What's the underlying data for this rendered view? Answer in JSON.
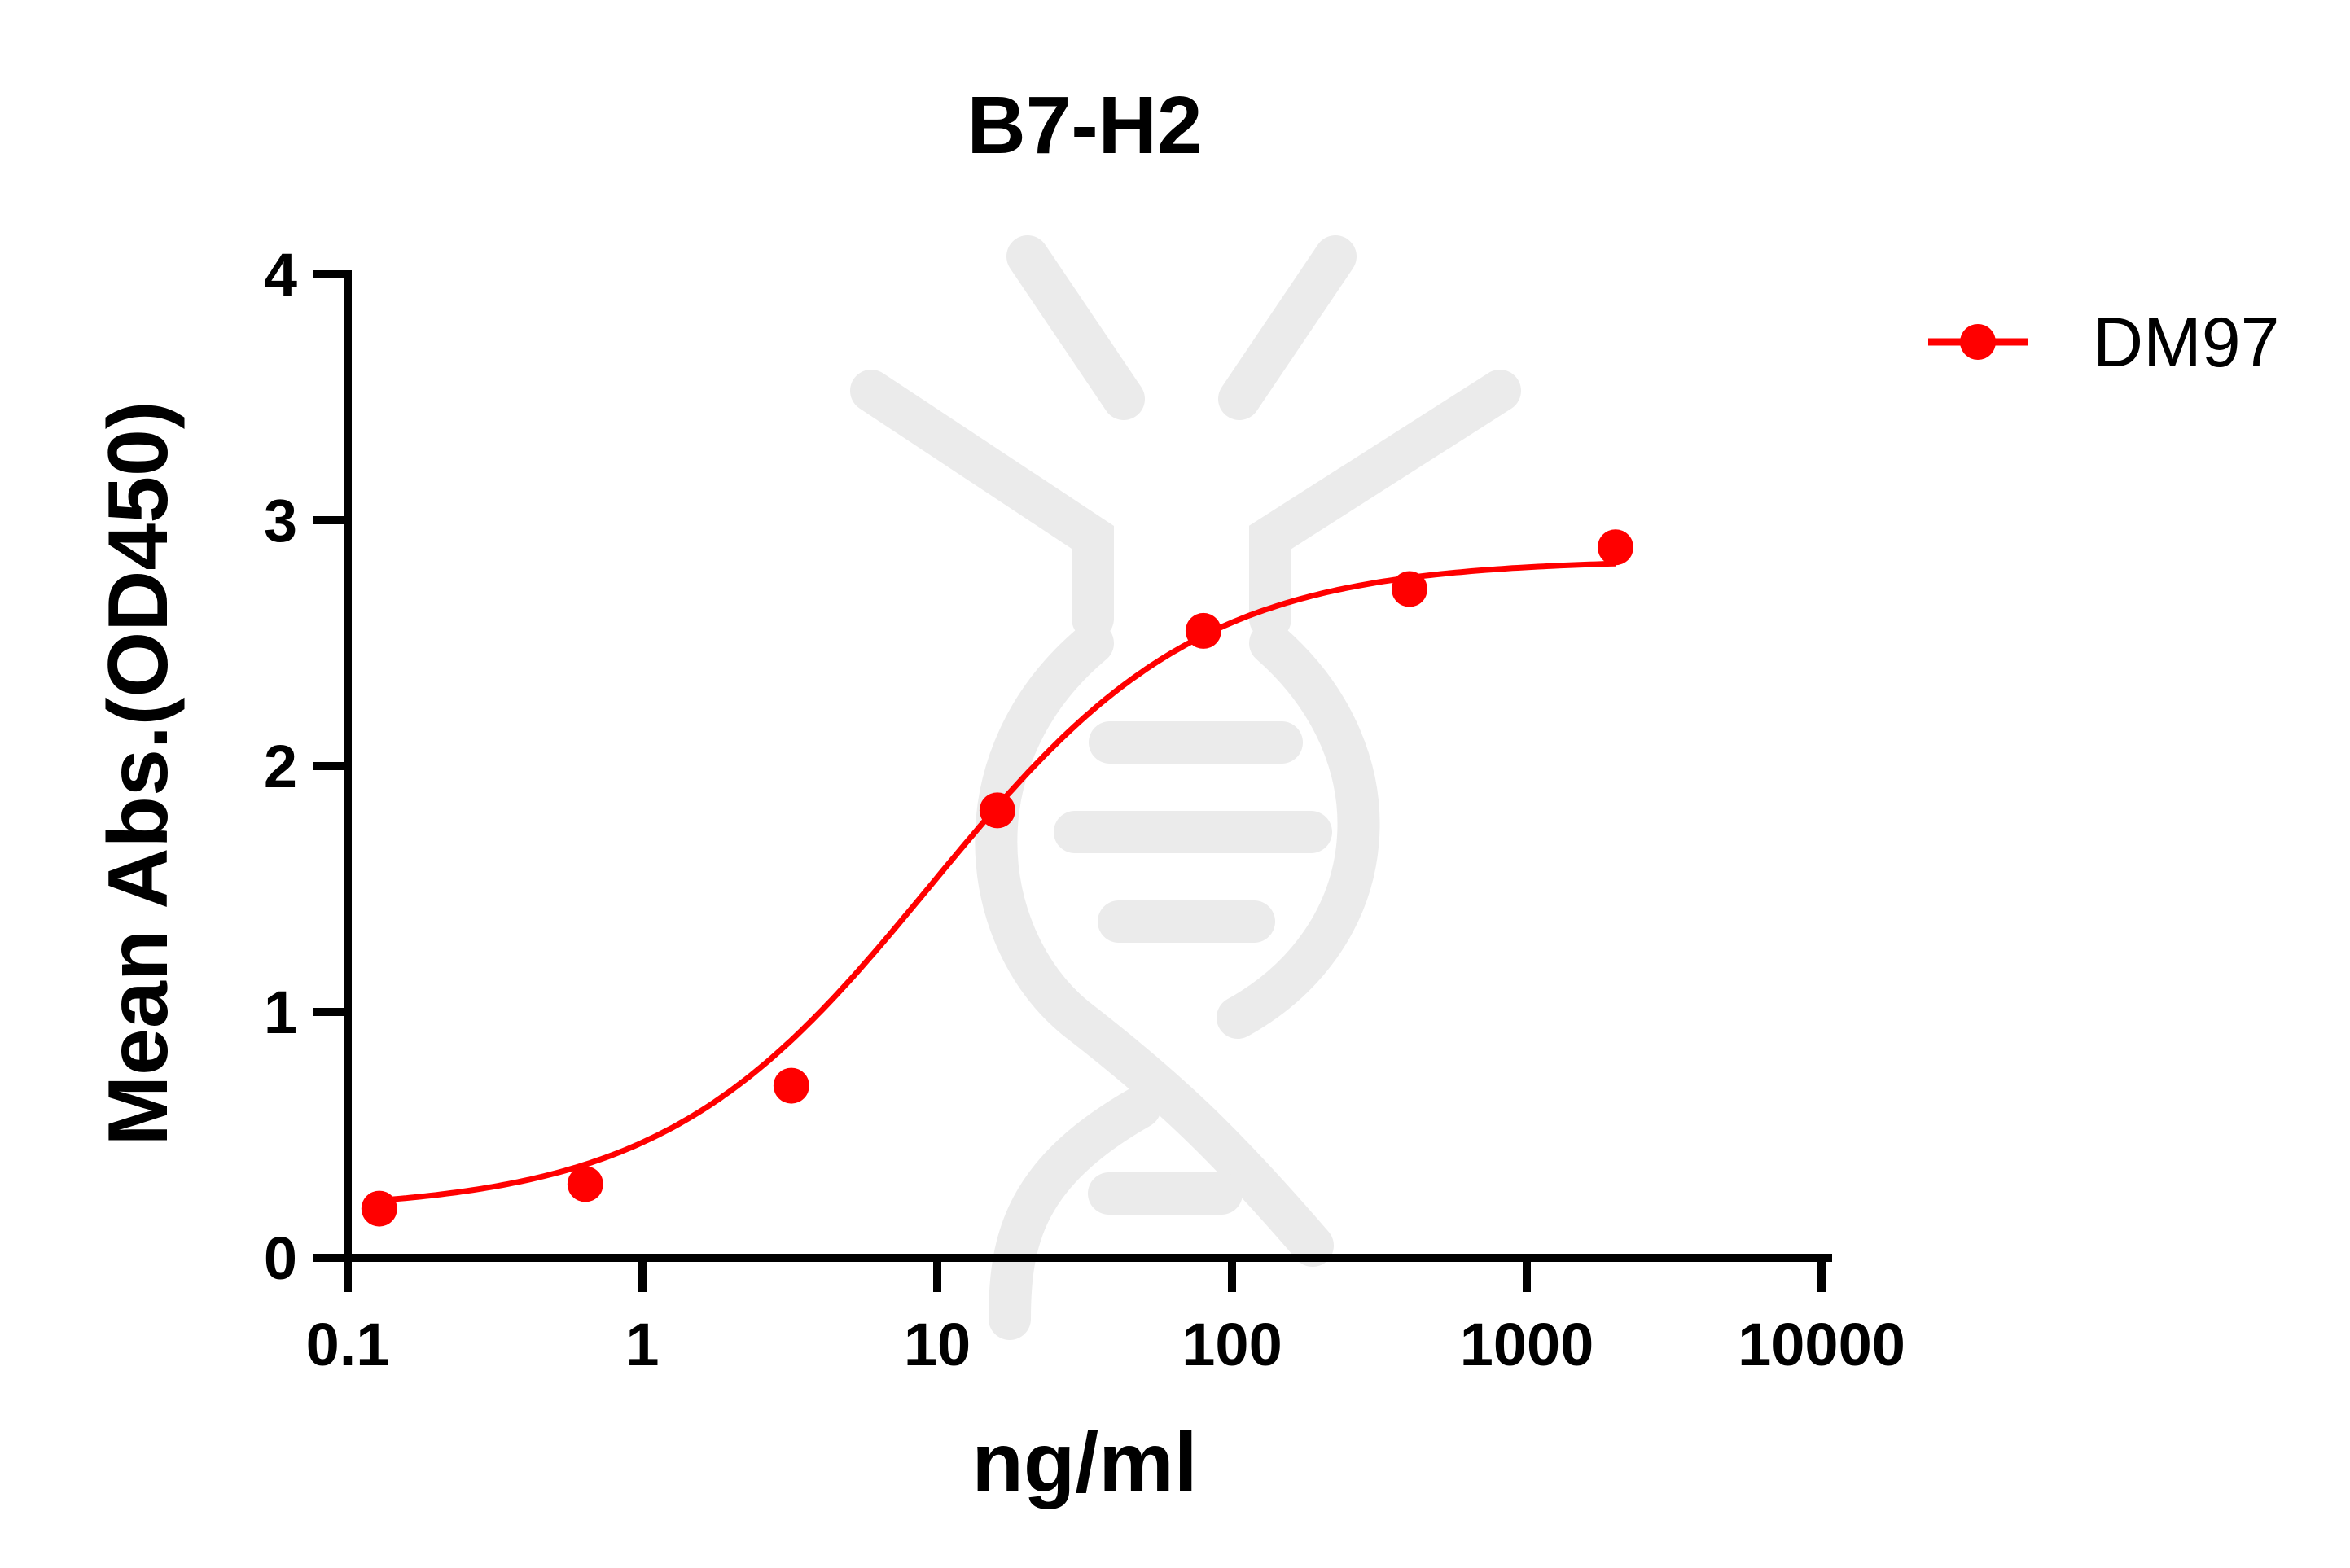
{
  "colors": {
    "series": "#ff0000",
    "axis": "#000000",
    "background": "#ffffff",
    "watermark": "#ebebeb"
  },
  "chart_data": {
    "type": "line",
    "title": "B7-H2",
    "xlabel": "ng/ml",
    "ylabel": "Mean Abs.(OD450)",
    "x_scale": "log",
    "xlim": [
      0.1,
      10000
    ],
    "ylim": [
      0,
      4
    ],
    "x_ticks": [
      0.1,
      1,
      10,
      100,
      1000,
      10000
    ],
    "x_tick_labels": [
      "0.1",
      "1",
      "10",
      "100",
      "1000",
      "10000"
    ],
    "y_ticks": [
      0,
      1,
      2,
      3,
      4
    ],
    "y_tick_labels": [
      "0",
      "1",
      "2",
      "3",
      "4"
    ],
    "grid": false,
    "legend_position": "top-right",
    "series": [
      {
        "name": "DM97",
        "color": "#ff0000",
        "marker": "circle",
        "x": [
          0.128,
          0.64,
          3.2,
          16,
          80,
          400,
          2000
        ],
        "y": [
          0.2,
          0.3,
          0.7,
          1.82,
          2.55,
          2.72,
          2.89
        ],
        "fit": {
          "model": "4PL",
          "bottom": 0.19,
          "top": 2.84,
          "ec50": 9.5,
          "hill": 0.95
        }
      }
    ]
  }
}
